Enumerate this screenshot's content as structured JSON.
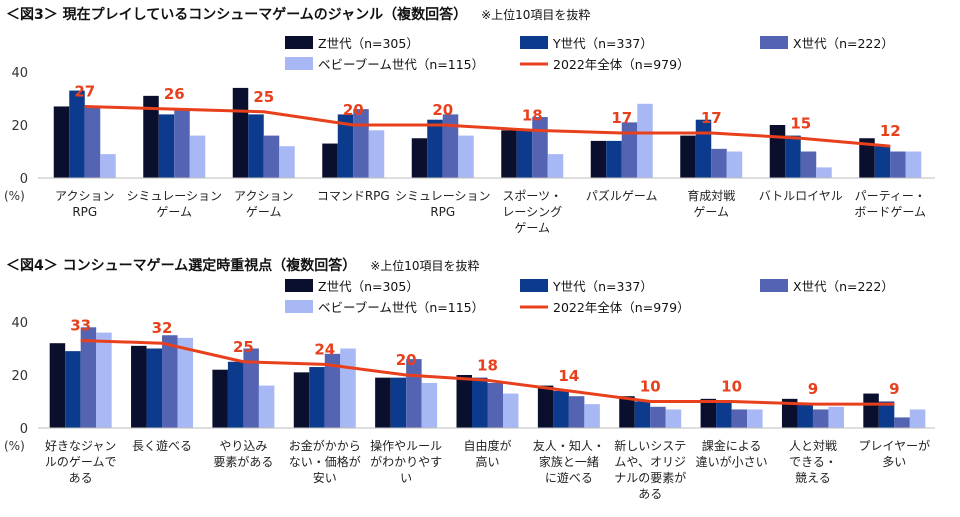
{
  "charts": [
    {
      "title": "＜図3＞ 現在プレイしているコンシューマゲームのジャンル（複数回答）",
      "note": "※上位10項目を抜粋",
      "chart_data": {
        "type": "bar",
        "ylabel": "(%)",
        "ylim": [
          0,
          40
        ],
        "yticks": [
          0,
          20,
          40
        ],
        "categories": [
          "アクション\nRPG",
          "シミュレーション\nゲーム",
          "アクション\nゲーム",
          "コマンドRPG",
          "シミュレーション\nRPG",
          "スポーツ・\nレーシング\nゲーム",
          "パズルゲーム",
          "育成対戦\nゲーム",
          "バトルロイヤル",
          "パーティー・\nボードゲーム"
        ],
        "series": [
          {
            "name": "Z世代（n=305）",
            "color": "#0b0f2e",
            "values": [
              27,
              31,
              34,
              13,
              15,
              18,
              14,
              16,
              20,
              15
            ]
          },
          {
            "name": "Y世代（n=337）",
            "color": "#0c3a8c",
            "values": [
              33,
              24,
              24,
              24,
              22,
              18,
              14,
              22,
              16,
              12
            ]
          },
          {
            "name": "X世代（n=222）",
            "color": "#5464b3",
            "values": [
              27,
              26,
              16,
              26,
              24,
              23,
              21,
              11,
              10,
              10
            ]
          },
          {
            "name": "ベビーブーム世代（n=115）",
            "color": "#a8b8f4",
            "values": [
              9,
              16,
              12,
              18,
              16,
              9,
              28,
              10,
              4,
              10
            ]
          }
        ],
        "line": {
          "name": "2022年全体（n=979）",
          "color": "#e8401c",
          "values": [
            27,
            26,
            25,
            20,
            20,
            18,
            17,
            17,
            15,
            12
          ],
          "labels": [
            "27",
            "26",
            "25",
            "20",
            "20",
            "18",
            "17",
            "17",
            "15",
            "12"
          ]
        }
      }
    },
    {
      "title": "＜図4＞ コンシューマゲーム選定時重視点（複数回答）",
      "note": "※上位10項目を抜粋",
      "chart_data": {
        "type": "bar",
        "ylabel": "(%)",
        "ylim": [
          0,
          40
        ],
        "yticks": [
          0,
          20,
          40
        ],
        "categories": [
          "好きなジャン\nルのゲームで\nある",
          "長く遊べる",
          "やり込み\n要素がある",
          "お金がかから\nない・価格が\n安い",
          "操作やルール\nがわかりやす\nい",
          "自由度が\n高い",
          "友人・知人・\n家族と一緒\nに遊べる",
          "新しいシステ\nムや、オリジ\nナルの要素が\nある",
          "課金による\n違いが小さい",
          "人と対戦\nできる・\n競える",
          "プレイヤーが\n多い"
        ],
        "series": [
          {
            "name": "Z世代（n=305）",
            "color": "#0b0f2e",
            "values": [
              32,
              31,
              22,
              21,
              19,
              20,
              16,
              12,
              11,
              11,
              13
            ]
          },
          {
            "name": "Y世代（n=337）",
            "color": "#0c3a8c",
            "values": [
              29,
              30,
              25,
              23,
              19,
              19,
              14,
              10,
              10,
              9,
              10
            ]
          },
          {
            "name": "X世代（n=222）",
            "color": "#5464b3",
            "values": [
              38,
              35,
              30,
              28,
              26,
              17,
              12,
              8,
              7,
              7,
              4
            ]
          },
          {
            "name": "ベビーブーム世代（n=115）",
            "color": "#a8b8f4",
            "values": [
              36,
              34,
              16,
              30,
              17,
              13,
              9,
              7,
              7,
              8,
              7
            ]
          }
        ],
        "line": {
          "name": "2022年全体（n=979）",
          "color": "#e8401c",
          "values": [
            33,
            32,
            25,
            24,
            20,
            18,
            14,
            10,
            10,
            9,
            9
          ],
          "labels": [
            "33",
            "32",
            "25",
            "24",
            "20",
            "18",
            "14",
            "10",
            "10",
            "9",
            "9"
          ]
        }
      }
    }
  ]
}
